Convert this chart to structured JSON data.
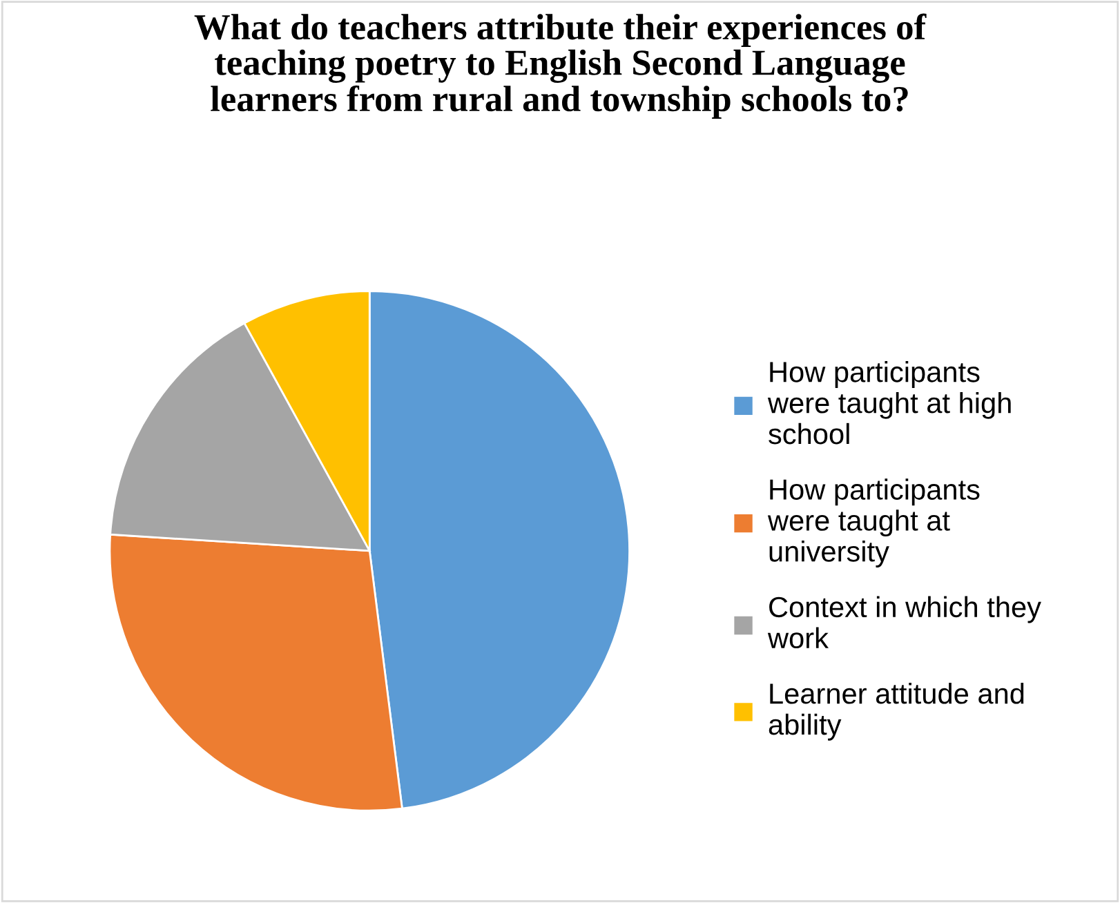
{
  "chart_data": {
    "type": "pie",
    "title": "What do teachers attribute their experiences of\nteaching poetry to English Second Language\nlearners from rural and township schools to?",
    "categories": [
      "How participants\nwere taught at high\nschool",
      "How participants\nwere taught at\nuniversity",
      "Context in which they\nwork",
      "Learner attitude and\nability"
    ],
    "values": [
      48,
      28,
      16,
      8
    ],
    "colors": [
      "#5b9bd5",
      "#ed7d31",
      "#a5a5a5",
      "#ffc000"
    ],
    "legend": "right"
  }
}
